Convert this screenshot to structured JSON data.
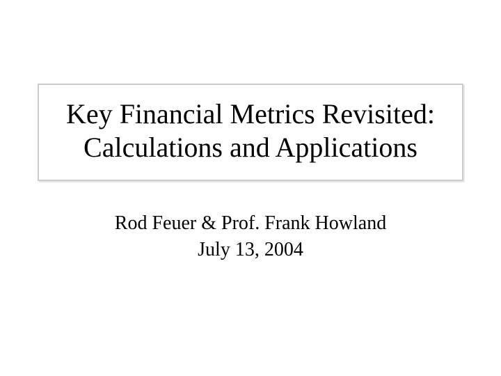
{
  "slide": {
    "title_line1": "Key Financial Metrics Revisited:",
    "title_line2": "Calculations and Applications",
    "authors": "Rod Feuer & Prof. Frank Howland",
    "date": "July 13, 2004",
    "style": {
      "background_color": "#ffffff",
      "title_font_size": 40,
      "subtitle_font_size": 28,
      "title_border_color": "#cccccc",
      "title_border_width": 2,
      "text_color": "#000000",
      "font_family": "Times New Roman"
    }
  }
}
